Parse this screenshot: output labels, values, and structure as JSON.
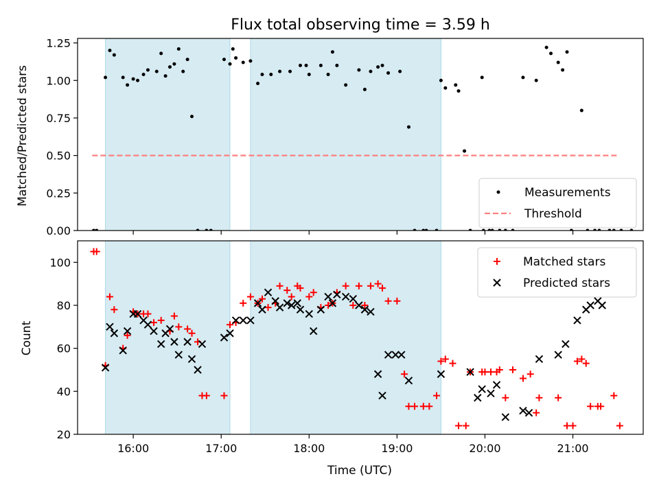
{
  "chart_data": [
    {
      "type": "scatter",
      "title": "Flux total observing time = 3.59 h",
      "xlabel": "",
      "ylabel": "Matched/Predicted stars",
      "xlim": [
        "15:22",
        "21:48"
      ],
      "ylim": [
        0,
        1.28
      ],
      "yticks": [
        0,
        0.25,
        0.5,
        0.75,
        1.0,
        1.25
      ],
      "ytick_labels": [
        "0.00",
        "0.25",
        "0.50",
        "0.75",
        "1.00",
        "1.25"
      ],
      "grid": false,
      "legend_position": "bottom-right",
      "shaded_intervals": [
        [
          "15:41",
          "17:06"
        ],
        [
          "17:20",
          "19:30"
        ]
      ],
      "threshold": {
        "name": "Threshold",
        "y": 0.5,
        "x_range": [
          "15:32",
          "21:30"
        ],
        "color": "#ff7f7f"
      },
      "series": [
        {
          "name": "Measurements",
          "color": "#000000",
          "x": [
            "15:33",
            "15:35",
            "15:41",
            "15:44",
            "15:47",
            "15:53",
            "15:56",
            "16:00",
            "16:03",
            "16:07",
            "16:10",
            "16:16",
            "16:19",
            "16:22",
            "16:25",
            "16:28",
            "16:31",
            "16:34",
            "16:37",
            "16:40",
            "16:44",
            "16:50",
            "16:53",
            "17:02",
            "17:06",
            "17:08",
            "17:10",
            "17:15",
            "17:20",
            "17:25",
            "17:28",
            "17:34",
            "17:40",
            "17:47",
            "17:54",
            "17:58",
            "18:00",
            "18:08",
            "18:13",
            "18:16",
            "18:19",
            "18:25",
            "18:34",
            "18:38",
            "18:42",
            "18:47",
            "18:50",
            "18:54",
            "19:02",
            "19:08",
            "19:12",
            "19:18",
            "19:20",
            "19:27",
            "19:30",
            "19:33",
            "19:40",
            "19:42",
            "19:46",
            "19:50",
            "19:58",
            "19:59",
            "20:03",
            "20:05",
            "20:10",
            "20:14",
            "20:19",
            "20:26",
            "20:35",
            "20:42",
            "20:45",
            "20:50",
            "20:53",
            "20:56",
            "20:59",
            "21:06",
            "21:10",
            "21:15",
            "21:18",
            "21:25",
            "21:28",
            "21:33",
            "21:40"
          ],
          "y": [
            0,
            0,
            1.02,
            1.2,
            1.17,
            1.02,
            0.97,
            1.01,
            1.0,
            1.04,
            1.07,
            1.06,
            1.18,
            1.03,
            1.09,
            1.11,
            1.21,
            1.06,
            1.14,
            0.76,
            0,
            0,
            0,
            1.14,
            1.11,
            1.21,
            1.15,
            1.12,
            1.13,
            0.98,
            1.04,
            1.04,
            1.06,
            1.06,
            1.1,
            1.1,
            1.04,
            1.1,
            1.04,
            1.19,
            1.1,
            0.97,
            1.07,
            0.94,
            1.06,
            1.09,
            1.1,
            1.05,
            1.06,
            0.69,
            0,
            0,
            0,
            0,
            1.0,
            0.95,
            0.97,
            0.93,
            0.53,
            0,
            1.02,
            0,
            0,
            0,
            0,
            0,
            0,
            1.02,
            1.0,
            1.22,
            1.18,
            1.12,
            1.07,
            1.19,
            0,
            0.8,
            0,
            0,
            0,
            0,
            0,
            0,
            0
          ]
        }
      ]
    },
    {
      "type": "scatter",
      "title": "",
      "xlabel": "Time (UTC)",
      "ylabel": "Count",
      "xlim": [
        "15:22",
        "21:48"
      ],
      "ylim": [
        20,
        110
      ],
      "yticks": [
        20,
        40,
        60,
        80,
        100
      ],
      "xtick_labels": [
        "16:00",
        "17:00",
        "18:00",
        "19:00",
        "20:00",
        "21:00"
      ],
      "grid": false,
      "legend_position": "top-right",
      "shaded_intervals": [
        [
          "15:41",
          "17:06"
        ],
        [
          "17:20",
          "19:30"
        ]
      ],
      "series": [
        {
          "name": "Matched stars",
          "color": "#ff0000",
          "marker": "+",
          "x": [
            "15:33",
            "15:35",
            "15:41",
            "15:44",
            "15:47",
            "15:53",
            "15:56",
            "16:00",
            "16:03",
            "16:07",
            "16:10",
            "16:14",
            "16:19",
            "16:25",
            "16:28",
            "16:31",
            "16:37",
            "16:40",
            "16:44",
            "16:47",
            "16:50",
            "17:02",
            "17:06",
            "17:10",
            "17:15",
            "17:20",
            "17:25",
            "17:28",
            "17:32",
            "17:37",
            "17:40",
            "17:45",
            "17:48",
            "17:52",
            "17:54",
            "18:00",
            "18:03",
            "18:08",
            "18:13",
            "18:16",
            "18:19",
            "18:25",
            "18:30",
            "18:34",
            "18:38",
            "18:42",
            "18:47",
            "18:50",
            "18:54",
            "19:00",
            "19:05",
            "19:08",
            "19:12",
            "19:18",
            "19:22",
            "19:27",
            "19:30",
            "19:33",
            "19:38",
            "19:42",
            "19:47",
            "19:50",
            "19:58",
            "20:00",
            "20:04",
            "20:08",
            "20:10",
            "20:14",
            "20:19",
            "20:26",
            "20:31",
            "20:35",
            "20:37",
            "20:50",
            "20:56",
            "21:00",
            "21:03",
            "21:06",
            "21:09",
            "21:12",
            "21:17",
            "21:19",
            "21:28",
            "21:32"
          ],
          "y": [
            105,
            105,
            52,
            84,
            78,
            60,
            66,
            77,
            76,
            76,
            76,
            72,
            73,
            68,
            75,
            70,
            69,
            67,
            63,
            38,
            38,
            38,
            71,
            72,
            81,
            84,
            81,
            83,
            79,
            81,
            89,
            87,
            84,
            89,
            88,
            84,
            86,
            79,
            80,
            81,
            86,
            89,
            80,
            89,
            80,
            89,
            90,
            88,
            82,
            82,
            48,
            33,
            33,
            33,
            33,
            38,
            54,
            55,
            53,
            24,
            24,
            49,
            49,
            49,
            49,
            49,
            50,
            37,
            50,
            46,
            48,
            30,
            37,
            37,
            24,
            24,
            54,
            55,
            53,
            33,
            33,
            33,
            38,
            24
          ]
        },
        {
          "name": "Predicted stars",
          "color": "#000000",
          "marker": "x",
          "x": [
            "15:41",
            "15:44",
            "15:47",
            "15:53",
            "15:56",
            "16:00",
            "16:03",
            "16:07",
            "16:10",
            "16:14",
            "16:19",
            "16:22",
            "16:25",
            "16:28",
            "16:31",
            "16:37",
            "16:40",
            "16:44",
            "16:47",
            "17:02",
            "17:06",
            "17:10",
            "17:15",
            "17:20",
            "17:25",
            "17:28",
            "17:32",
            "17:37",
            "17:40",
            "17:45",
            "17:48",
            "17:52",
            "17:54",
            "18:00",
            "18:03",
            "18:08",
            "18:13",
            "18:16",
            "18:19",
            "18:25",
            "18:30",
            "18:34",
            "18:38",
            "18:42",
            "18:47",
            "18:50",
            "18:54",
            "18:59",
            "19:03",
            "19:08",
            "19:30",
            "19:50",
            "19:55",
            "19:58",
            "20:04",
            "20:08",
            "20:14",
            "20:26",
            "20:30",
            "20:37",
            "20:50",
            "20:55",
            "21:03",
            "21:09",
            "21:12",
            "21:17",
            "21:20"
          ],
          "y": [
            51,
            70,
            67,
            59,
            68,
            76,
            76,
            73,
            71,
            68,
            62,
            67,
            69,
            63,
            57,
            63,
            55,
            50,
            62,
            65,
            67,
            73,
            73,
            73,
            81,
            78,
            86,
            82,
            79,
            81,
            80,
            81,
            78,
            76,
            68,
            78,
            84,
            81,
            85,
            84,
            83,
            80,
            78,
            77,
            48,
            38,
            57,
            57,
            57,
            45,
            48,
            49,
            37,
            41,
            39,
            43,
            28,
            31,
            30,
            55,
            57,
            62,
            73,
            78,
            80,
            82,
            80
          ]
        }
      ]
    }
  ]
}
